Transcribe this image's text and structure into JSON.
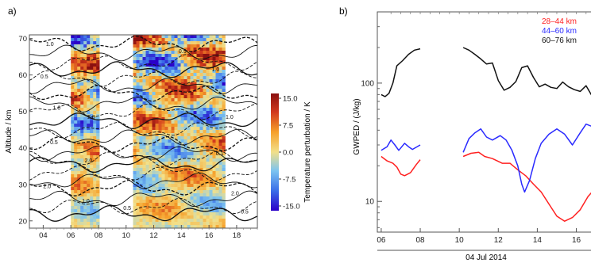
{
  "chart_data": [
    {
      "type": "heatmap",
      "panel_label": "a)",
      "ylabel": "Altitude / km",
      "x_ticks": [
        "04",
        "06",
        "08",
        "10",
        "12",
        "14",
        "16",
        "18"
      ],
      "x_tick_values": [
        4,
        6,
        8,
        10,
        12,
        14,
        16,
        18
      ],
      "xlim": [
        3,
        19.5
      ],
      "y_ticks": [
        "20",
        "30",
        "40",
        "50",
        "60",
        "70"
      ],
      "y_tick_values": [
        20,
        30,
        40,
        50,
        60,
        70
      ],
      "ylim": [
        18,
        71
      ],
      "colorbar": {
        "label": "Temperature perturbation / K",
        "ticks": [
          "15.0",
          "7.5",
          "0.0",
          "-7.5",
          "-15.0"
        ],
        "range": [
          -15,
          15
        ],
        "colors": [
          "#2a00c8",
          "#3a6ee8",
          "#7cc4f0",
          "#f2e08a",
          "#f6a02a",
          "#d23a1e",
          "#8a1010"
        ]
      },
      "data_bands": [
        [
          6,
          8
        ],
        [
          10.5,
          17
        ]
      ],
      "contour_labels": [
        "0.1",
        "0.2",
        "0.5",
        "1.0",
        "2.0"
      ]
    },
    {
      "type": "line",
      "panel_label": "b)",
      "ylabel": "GWPED / (J/kg)",
      "xlabel": "04 Jul 2014",
      "x_ticks": [
        "06",
        "08",
        "10",
        "12",
        "14",
        "16"
      ],
      "x_tick_values": [
        6,
        8,
        10,
        12,
        14,
        16
      ],
      "xlim": [
        5.8,
        17.2
      ],
      "y_scale": "log",
      "y_ticks": [
        "10",
        "100"
      ],
      "y_tick_values": [
        10,
        100
      ],
      "ylim": [
        5.5,
        400
      ],
      "legend_position": "top-right",
      "series": [
        {
          "name": "28–44 km",
          "color": "#ff2020",
          "segments": [
            [
              [
                6.0,
                24
              ],
              [
                6.3,
                22
              ],
              [
                6.6,
                21
              ],
              [
                6.8,
                19.5
              ],
              [
                7.0,
                17
              ],
              [
                7.2,
                16.5
              ],
              [
                7.5,
                17.5
              ],
              [
                7.8,
                20.5
              ],
              [
                8.0,
                22.5
              ]
            ],
            [
              [
                10.2,
                24
              ],
              [
                10.6,
                25.5
              ],
              [
                11.0,
                26
              ],
              [
                11.3,
                24
              ],
              [
                11.7,
                23
              ],
              [
                12.2,
                21
              ],
              [
                12.6,
                21
              ],
              [
                13.0,
                18.5
              ],
              [
                13.4,
                16.5
              ],
              [
                13.8,
                14
              ],
              [
                14.2,
                12
              ],
              [
                14.6,
                9.5
              ],
              [
                15.0,
                7.5
              ],
              [
                15.4,
                6.8
              ],
              [
                15.8,
                7.3
              ],
              [
                16.2,
                8.5
              ],
              [
                16.6,
                11
              ],
              [
                17.0,
                13
              ]
            ]
          ]
        },
        {
          "name": "44–60 km",
          "color": "#2a2aff",
          "segments": [
            [
              [
                6.0,
                27
              ],
              [
                6.3,
                29
              ],
              [
                6.5,
                33
              ],
              [
                6.7,
                30
              ],
              [
                6.9,
                27
              ],
              [
                7.2,
                31
              ],
              [
                7.4,
                29
              ],
              [
                7.6,
                27.5
              ],
              [
                8.0,
                30
              ]
            ],
            [
              [
                10.2,
                26
              ],
              [
                10.5,
                34
              ],
              [
                10.8,
                38
              ],
              [
                11.1,
                41
              ],
              [
                11.4,
                35
              ],
              [
                11.7,
                33
              ],
              [
                12.1,
                36
              ],
              [
                12.4,
                33
              ],
              [
                12.7,
                27
              ],
              [
                13.0,
                20
              ],
              [
                13.2,
                14
              ],
              [
                13.35,
                12
              ],
              [
                13.6,
                15
              ],
              [
                13.9,
                23
              ],
              [
                14.2,
                31
              ],
              [
                14.6,
                37
              ],
              [
                15.0,
                41
              ],
              [
                15.4,
                37
              ],
              [
                15.8,
                30
              ],
              [
                16.2,
                38
              ],
              [
                16.5,
                45
              ],
              [
                16.8,
                43
              ],
              [
                17.0,
                40
              ]
            ]
          ]
        },
        {
          "name": "60–76 km",
          "color": "#111111",
          "segments": [
            [
              [
                6.0,
                80
              ],
              [
                6.2,
                77
              ],
              [
                6.4,
                82
              ],
              [
                6.6,
                100
              ],
              [
                6.8,
                140
              ],
              [
                7.1,
                155
              ],
              [
                7.4,
                175
              ],
              [
                7.7,
                190
              ],
              [
                8.0,
                195
              ]
            ],
            [
              [
                10.2,
                200
              ],
              [
                10.5,
                190
              ],
              [
                10.8,
                175
              ],
              [
                11.1,
                160
              ],
              [
                11.4,
                145
              ],
              [
                11.7,
                148
              ],
              [
                12.0,
                105
              ],
              [
                12.3,
                87
              ],
              [
                12.6,
                92
              ],
              [
                12.9,
                103
              ],
              [
                13.2,
                135
              ],
              [
                13.5,
                140
              ],
              [
                13.8,
                112
              ],
              [
                14.1,
                93
              ],
              [
                14.4,
                98
              ],
              [
                14.7,
                92
              ],
              [
                15.0,
                90
              ],
              [
                15.3,
                102
              ],
              [
                15.6,
                93
              ],
              [
                15.9,
                88
              ],
              [
                16.2,
                85
              ],
              [
                16.5,
                95
              ],
              [
                16.8,
                78
              ],
              [
                17.0,
                68
              ]
            ]
          ]
        }
      ]
    }
  ]
}
